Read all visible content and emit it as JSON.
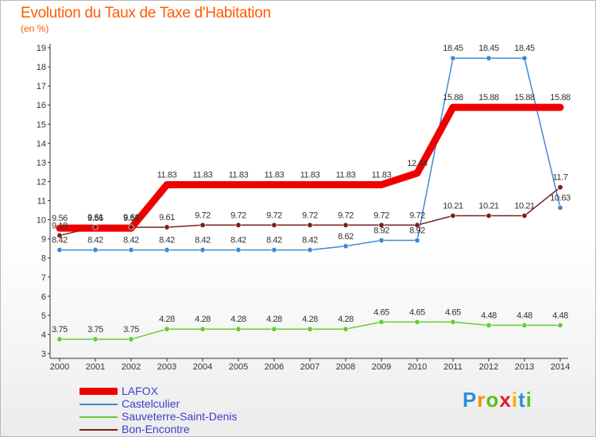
{
  "header": {
    "title": "Evolution du Taux de Taxe d'Habitation",
    "unit": "(en %)"
  },
  "chart_data": {
    "type": "line",
    "title": "Evolution du Taux de Taxe d'Habitation",
    "ylabel": "(en %)",
    "xlabel": "",
    "ylim": [
      3,
      19
    ],
    "yticks": [
      3,
      4,
      5,
      6,
      7,
      8,
      9,
      10,
      11,
      12,
      13,
      14,
      15,
      16,
      17,
      18,
      19
    ],
    "x": [
      2000,
      2001,
      2002,
      2003,
      2004,
      2005,
      2006,
      2007,
      2008,
      2009,
      2010,
      2011,
      2012,
      2013,
      2014
    ],
    "grid": false,
    "legend_position": "bottom-left",
    "series": [
      {
        "name": "LAFOX",
        "color": "#ee0000",
        "values": [
          9.56,
          9.56,
          9.56,
          11.83,
          11.83,
          11.83,
          11.83,
          11.83,
          11.83,
          11.83,
          12.44,
          15.88,
          15.88,
          15.88,
          15.88
        ],
        "labels": [
          "9.56",
          "9.56",
          "9.56",
          "11.83",
          "11.83",
          "11.83",
          "11.83",
          "11.83",
          "11.83",
          "11.83",
          "12.44",
          "15.88",
          "15.88",
          "15.88",
          "15.88"
        ]
      },
      {
        "name": "Castelculier",
        "color": "#3d8ad6",
        "values": [
          8.42,
          8.42,
          8.42,
          8.42,
          8.42,
          8.42,
          8.42,
          8.42,
          8.62,
          8.92,
          8.92,
          18.45,
          18.45,
          18.45,
          10.63
        ],
        "labels": [
          "8.42",
          "8.42",
          "8.42",
          "8.42",
          "8.42",
          "8.42",
          "8.42",
          "8.42",
          "8.62",
          "8.92",
          "8.92",
          "18.45",
          "18.45",
          "18.45",
          "10.63"
        ]
      },
      {
        "name": "Sauveterre-Saint-Denis",
        "color": "#66cc33",
        "values": [
          3.75,
          3.75,
          3.75,
          4.28,
          4.28,
          4.28,
          4.28,
          4.28,
          4.28,
          4.65,
          4.65,
          4.65,
          4.48,
          4.48,
          4.48
        ],
        "labels": [
          "3.75",
          "3.75",
          "3.75",
          "4.28",
          "4.28",
          "4.28",
          "4.28",
          "4.28",
          "4.28",
          "4.65",
          "4.65",
          "4.65",
          "4.48",
          "4.48",
          "4.48"
        ]
      },
      {
        "name": "Bon-Encontre",
        "color": "#7a1f1f",
        "values": [
          9.18,
          9.61,
          9.61,
          9.61,
          9.72,
          9.72,
          9.72,
          9.72,
          9.72,
          9.72,
          9.72,
          10.21,
          10.21,
          10.21,
          11.7
        ],
        "labels": [
          "9.18",
          "9.61",
          "9.61",
          "9.61",
          "9.72",
          "9.72",
          "9.72",
          "9.72",
          "9.72",
          "9.72",
          "9.72",
          "10.21",
          "10.21",
          "10.21",
          "11.7"
        ]
      }
    ]
  },
  "legend": {
    "items": [
      {
        "label": "LAFOX",
        "color": "#ee0000"
      },
      {
        "label": "Castelculier",
        "color": "#3d8ad6"
      },
      {
        "label": "Sauveterre-Saint-Denis",
        "color": "#66cc33"
      },
      {
        "label": "Bon-Encontre",
        "color": "#7a1f1f"
      }
    ]
  },
  "logo": {
    "text": "Proxiti"
  }
}
